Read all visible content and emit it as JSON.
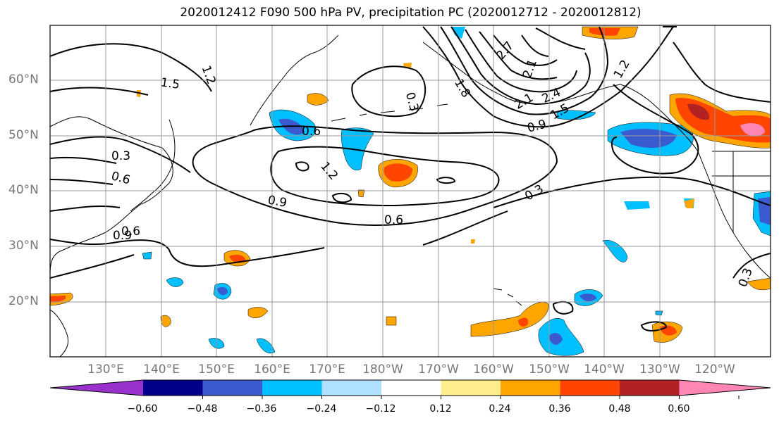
{
  "title": "2020012412 F090 500 hPa PV, precipitation PC (2020012712 - 2020012812)",
  "latitude_labels": [
    "60°N",
    "50°N",
    "40°N",
    "30°N",
    "20°N"
  ],
  "longitude_labels": [
    "130°E",
    "140°E",
    "150°E",
    "160°E",
    "170°E",
    "180°W",
    "170°W",
    "160°W",
    "150°W",
    "140°W",
    "130°W",
    "120°W"
  ],
  "contour_labels": [
    "1.5",
    "1.2",
    "0.3",
    "0.6",
    "0.9",
    "1.2",
    "0.6",
    "0.9",
    "0.6",
    "0.6",
    "0.3",
    "0.3",
    "1.8",
    "2.7",
    "2.4",
    "2.1",
    "1.5",
    "0.9",
    "1.2",
    "0.3",
    "2.1"
  ],
  "colorbar": {
    "tick_labels": [
      "−0.60",
      "−0.48",
      "−0.36",
      "−0.24",
      "−0.12",
      "0.12",
      "0.24",
      "0.36",
      "0.48",
      "0.60"
    ],
    "colors": [
      "#9932cc",
      "#00008b",
      "#3a5bd0",
      "#00bfff",
      "#b0e0ff",
      "#ffffff",
      "#ffec8b",
      "#ffa500",
      "#ff4500",
      "#b22222",
      "#ff85b4"
    ]
  }
}
